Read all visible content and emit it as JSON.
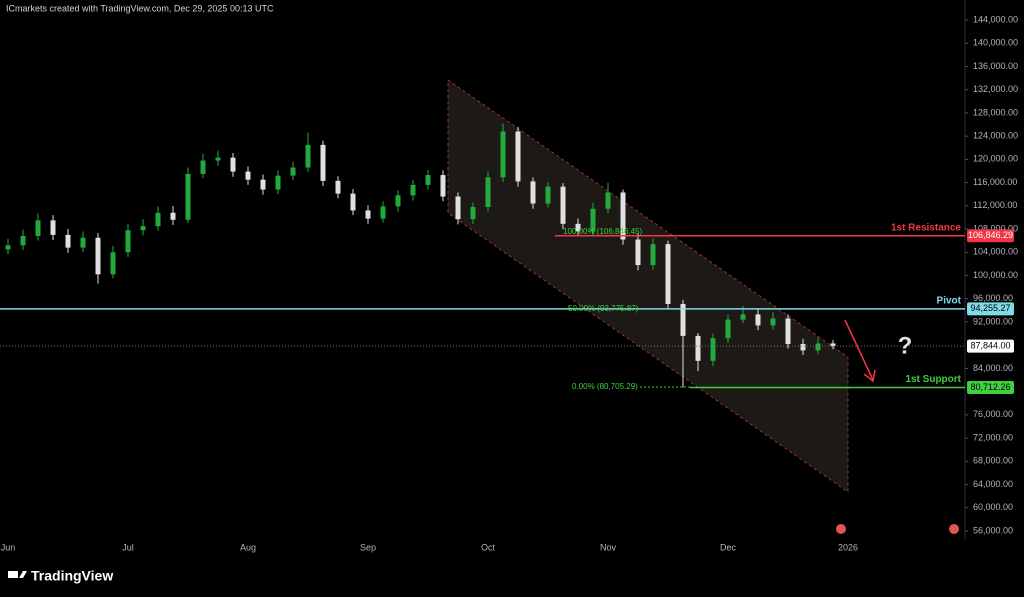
{
  "chart_data": {
    "type": "candlestick",
    "header": "ICmarkets created with TradingView.com, Dec 29, 2025 00:13 UTC",
    "brand": "TradingView",
    "categories": [
      "Jun",
      null,
      null,
      null,
      null,
      null,
      null,
      null,
      "Jul",
      null,
      null,
      null,
      null,
      null,
      null,
      null,
      "Aug",
      null,
      null,
      null,
      null,
      null,
      null,
      null,
      "Sep",
      null,
      null,
      null,
      null,
      null,
      null,
      null,
      "Oct",
      null,
      null,
      null,
      null,
      null,
      null,
      null,
      "Nov",
      null,
      null,
      null,
      null,
      null,
      null,
      null,
      "Dec",
      null,
      null,
      null,
      null,
      null,
      null,
      null,
      "2026"
    ],
    "open": [
      104500,
      105200,
      106800,
      109500,
      107000,
      104800,
      106500,
      100200,
      104000,
      107800,
      108500,
      110800,
      109600,
      117500,
      119800,
      120300,
      117900,
      116500,
      114800,
      117200,
      118600,
      122500,
      116300,
      114100,
      111200,
      109800,
      111900,
      113800,
      115600,
      117300,
      113600,
      109700,
      111800,
      116900,
      124800,
      116200,
      112400,
      115300,
      108900,
      107600,
      111500,
      114300,
      106200,
      101800,
      105400,
      95100,
      89600,
      85300,
      89200,
      92400,
      93300,
      91400,
      92600,
      88200,
      87100,
      88300,
      null
    ],
    "high": [
      106300,
      107900,
      110700,
      110400,
      108000,
      107600,
      107300,
      105100,
      108900,
      109700,
      111900,
      112000,
      118600,
      121000,
      121500,
      121100,
      118800,
      117400,
      118100,
      119600,
      124600,
      123200,
      117100,
      114900,
      112100,
      112800,
      114700,
      116500,
      118200,
      118100,
      114300,
      112600,
      117900,
      126200,
      125600,
      116900,
      116100,
      115900,
      109800,
      112500,
      116000,
      114800,
      107200,
      106400,
      106000,
      95800,
      90100,
      90000,
      93300,
      94800,
      94300,
      93700,
      93300,
      89100,
      89300,
      88900,
      null
    ],
    "low": [
      103600,
      104400,
      106000,
      106100,
      103900,
      104000,
      98600,
      99500,
      103200,
      106900,
      107700,
      108700,
      109000,
      116800,
      118900,
      117000,
      115600,
      113900,
      114000,
      116400,
      117900,
      115400,
      113300,
      110400,
      108900,
      109100,
      111000,
      112900,
      114800,
      112800,
      108800,
      108900,
      111000,
      116100,
      115300,
      111500,
      111700,
      108000,
      106700,
      106900,
      110700,
      105300,
      100900,
      101000,
      94200,
      80700,
      83500,
      84400,
      88400,
      91800,
      90600,
      90700,
      87400,
      86300,
      86400,
      87300,
      null
    ],
    "close": [
      105200,
      106800,
      109500,
      107000,
      104800,
      106500,
      100200,
      104000,
      107800,
      108500,
      110800,
      109600,
      117500,
      119800,
      120300,
      117900,
      116500,
      114800,
      117200,
      118600,
      122500,
      116300,
      114100,
      111200,
      109800,
      111900,
      113800,
      115600,
      117300,
      113600,
      109700,
      111800,
      116900,
      124800,
      116200,
      112400,
      115300,
      108900,
      107600,
      111500,
      114300,
      106200,
      101800,
      105400,
      95100,
      89600,
      85300,
      89200,
      92400,
      93300,
      91400,
      92600,
      88200,
      87100,
      88300,
      87844,
      null
    ],
    "up_color": "#22ab3c",
    "down_color": "#e0e0e0",
    "ylim": [
      54000,
      146000
    ],
    "yticks": [
      {
        "value": 144000,
        "label": "144,000.00"
      },
      {
        "value": 140000,
        "label": "140,000.00"
      },
      {
        "value": 136000,
        "label": "136,000.00"
      },
      {
        "value": 132000,
        "label": "132,000.00"
      },
      {
        "value": 128000,
        "label": "128,000.00"
      },
      {
        "value": 124000,
        "label": "124,000.00"
      },
      {
        "value": 120000,
        "label": "120,000.00"
      },
      {
        "value": 116000,
        "label": "116,000.00"
      },
      {
        "value": 112000,
        "label": "112,000.00"
      },
      {
        "value": 108000,
        "label": "108,000.00"
      },
      {
        "value": 104000,
        "label": "104,000.00"
      },
      {
        "value": 100000,
        "label": "100,000.00"
      },
      {
        "value": 96000,
        "label": "96,000.00"
      },
      {
        "value": 92000,
        "label": "92,000.00"
      },
      {
        "value": 84000,
        "label": "84,000.00"
      },
      {
        "value": 76000,
        "label": "76,000.00"
      },
      {
        "value": 72000,
        "label": "72,000.00"
      },
      {
        "value": 68000,
        "label": "68,000.00"
      },
      {
        "value": 64000,
        "label": "64,000.00"
      },
      {
        "value": 60000,
        "label": "60,000.00"
      },
      {
        "value": 56000,
        "label": "56,000.00"
      }
    ],
    "levels": [
      {
        "name": "1st Resistance",
        "value": 106846.29,
        "label": "106,846.29",
        "color": "#f23645"
      },
      {
        "name": "Pivot",
        "value": 94255.27,
        "label": "94,255.27",
        "color": "#7fdbe8"
      },
      {
        "name": "1st Support",
        "value": 80712.26,
        "label": "80,712.26",
        "color": "#3dd13d"
      }
    ],
    "last_price": {
      "value": 87844,
      "label": "87,844.00"
    },
    "annotations": [
      "100.00% (106,846.45)",
      "50.00% (93,775.87)",
      "0.00% (80,705.29)",
      "?"
    ]
  }
}
